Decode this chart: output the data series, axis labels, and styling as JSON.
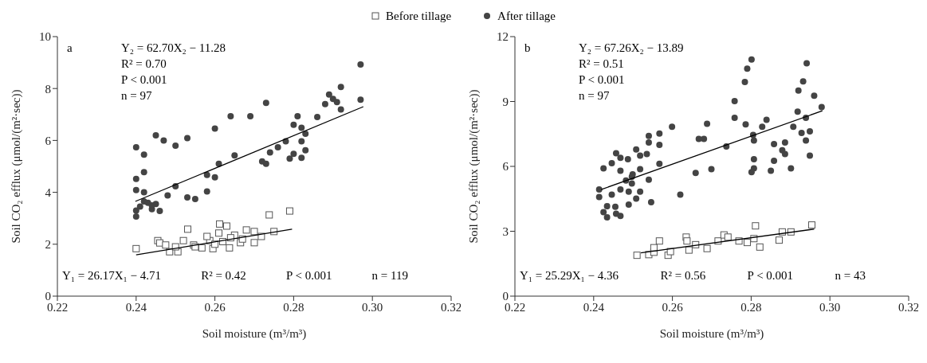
{
  "chart_data": [
    {
      "type": "scatter",
      "xlabel": "Soil moisture (m³/m³)",
      "ylabel": "Soil CO₂ efflux (μmol/(m²·sec))",
      "xlim": [
        0.22,
        0.32
      ],
      "xticks": [
        0.22,
        0.24,
        0.26,
        0.28,
        {
          "value": 0.3,
          "label": "0.30"
        },
        0.32
      ],
      "ylim": [
        0,
        10
      ],
      "yticks": [
        0,
        2,
        4,
        6,
        8,
        10
      ],
      "legend": "top",
      "annotations": [
        "a",
        "Y₂ = 62.70X₂ − 11.28",
        "R² = 0.70",
        "P < 0.001",
        "n = 97",
        "Y₁ = 26.17X₁ − 4.71",
        "R² = 0.42",
        "P < 0.001",
        "n = 119"
      ],
      "series": [
        {
          "name": "Before tillage",
          "marker": "square",
          "color": "#555555",
          "x": [
            0.24,
            0.2455,
            0.246,
            0.2531,
            0.252,
            0.2485,
            0.2506,
            0.2612,
            0.263,
            0.261,
            0.265,
            0.268,
            0.27,
            0.2718,
            0.275,
            0.2738,
            0.279,
            0.2665,
            0.27,
            0.2567,
            0.2595,
            0.2546,
            0.2637,
            0.2587,
            0.2475,
            0.258,
            0.262,
            0.264,
            0.267,
            0.255,
            0.25,
            0.26
          ],
          "values": [
            1.83,
            2.14,
            2.05,
            2.58,
            2.14,
            1.71,
            1.71,
            2.78,
            2.7,
            2.43,
            2.35,
            2.55,
            2.49,
            2.3,
            2.49,
            3.13,
            3.28,
            2.06,
            2.06,
            1.86,
            1.83,
            1.97,
            1.86,
            2.14,
            1.97,
            2.3,
            2.1,
            2.25,
            2.2,
            1.9,
            1.9,
            2.0
          ]
        },
        {
          "name": "After tillage",
          "marker": "circle",
          "color": "#444444",
          "x": [
            0.297,
            0.297,
            0.292,
            0.289,
            0.291,
            0.292,
            0.273,
            0.264,
            0.269,
            0.26,
            0.245,
            0.247,
            0.25,
            0.253,
            0.24,
            0.242,
            0.281,
            0.286,
            0.28,
            0.282,
            0.283,
            0.278,
            0.282,
            0.276,
            0.274,
            0.283,
            0.28,
            0.282,
            0.279,
            0.272,
            0.273,
            0.265,
            0.261,
            0.24,
            0.242,
            0.24,
            0.242,
            0.258,
            0.26,
            0.258,
            0.25,
            0.248,
            0.253,
            0.255,
            0.246,
            0.24,
            0.241,
            0.243,
            0.244,
            0.245,
            0.24,
            0.242,
            0.244,
            0.29,
            0.288
          ],
          "values": [
            8.93,
            7.57,
            8.06,
            7.77,
            7.48,
            7.19,
            7.45,
            6.93,
            6.93,
            6.46,
            6.2,
            6.0,
            5.8,
            6.09,
            5.74,
            5.45,
            6.93,
            6.9,
            6.6,
            6.49,
            6.26,
            5.97,
            5.97,
            5.74,
            5.54,
            5.62,
            5.48,
            5.33,
            5.3,
            5.19,
            5.1,
            5.42,
            5.1,
            4.52,
            4.78,
            4.09,
            4.0,
            4.67,
            4.58,
            4.03,
            4.23,
            3.88,
            3.8,
            3.74,
            3.28,
            3.07,
            3.45,
            3.6,
            3.35,
            3.55,
            3.3,
            3.65,
            3.5,
            7.6,
            7.4
          ]
        },
        {
          "type": "line",
          "marker": "none",
          "color": "#000000",
          "x": [
            0.24,
            0.2796
          ],
          "values": [
            1.59,
            2.58
          ]
        },
        {
          "type": "line",
          "marker": "none",
          "color": "#000000",
          "x": [
            0.2398,
            0.2977
          ],
          "values": [
            3.65,
            7.3
          ]
        }
      ]
    },
    {
      "type": "scatter",
      "xlabel": "Soil moisture (m³/m³)",
      "ylabel": "Soil CO₂ efflux (μmol/(m²·sec))",
      "xlim": [
        0.22,
        0.32
      ],
      "xticks": [
        0.22,
        0.24,
        0.26,
        0.28,
        {
          "value": 0.3,
          "label": "0.30"
        },
        0.32
      ],
      "ylim": [
        0,
        12
      ],
      "yticks": [
        0,
        3,
        6,
        9,
        12
      ],
      "annotations": [
        "b",
        "Y₂ = 67.26X₂ − 13.89",
        "R² = 0.51",
        "P < 0.001",
        "n = 97",
        "Y₁ = 25.29X₁ − 4.36",
        "R² = 0.56",
        "P < 0.001",
        "n = 43"
      ],
      "series": [
        {
          "marker": "square",
          "color": "#555555",
          "x": [
            0.251,
            0.254,
            0.2553,
            0.2567,
            0.2553,
            0.2589,
            0.2595,
            0.2635,
            0.2637,
            0.2642,
            0.2659,
            0.2688,
            0.2716,
            0.2731,
            0.2741,
            0.2769,
            0.279,
            0.2811,
            0.2807,
            0.2822,
            0.2871,
            0.2879,
            0.2901,
            0.2954
          ],
          "values": [
            1.89,
            1.92,
            2.03,
            2.55,
            2.24,
            1.89,
            2.06,
            2.73,
            2.55,
            2.13,
            2.38,
            2.2,
            2.55,
            2.83,
            2.73,
            2.55,
            2.48,
            3.25,
            2.66,
            2.27,
            2.59,
            2.97,
            2.97,
            3.29
          ]
        },
        {
          "marker": "circle",
          "color": "#444444",
          "x": [
            0.2801,
            0.279,
            0.2784,
            0.2941,
            0.2932,
            0.292,
            0.296,
            0.2979,
            0.2758,
            0.2758,
            0.2918,
            0.2939,
            0.2907,
            0.2928,
            0.2949,
            0.2939,
            0.2949,
            0.2839,
            0.2828,
            0.2786,
            0.2805,
            0.2807,
            0.2858,
            0.2886,
            0.2879,
            0.2886,
            0.2858,
            0.2807,
            0.2807,
            0.2801,
            0.285,
            0.2901,
            0.2737,
            0.2688,
            0.2667,
            0.268,
            0.2659,
            0.2699,
            0.2599,
            0.2567,
            0.2567,
            0.254,
            0.254,
            0.2567,
            0.2508,
            0.2457,
            0.2468,
            0.2487,
            0.2518,
            0.2535,
            0.2425,
            0.2446,
            0.2518,
            0.2468,
            0.2499,
            0.2482,
            0.2497,
            0.254,
            0.262,
            0.2546,
            0.2414,
            0.2414,
            0.2446,
            0.2468,
            0.2489,
            0.2518,
            0.2508,
            0.2489,
            0.2434,
            0.2455,
            0.2425,
            0.2434,
            0.2457,
            0.2468,
            0.2497
          ],
          "values": [
            10.94,
            10.52,
            9.9,
            10.77,
            9.93,
            9.51,
            9.27,
            8.74,
            9.02,
            8.25,
            8.53,
            8.25,
            7.83,
            7.55,
            7.62,
            7.2,
            6.5,
            8.15,
            7.83,
            7.94,
            7.45,
            7.2,
            7.03,
            7.1,
            6.75,
            6.57,
            6.26,
            6.33,
            5.91,
            5.73,
            5.8,
            5.91,
            6.92,
            7.97,
            7.27,
            7.27,
            5.7,
            5.87,
            7.83,
            7.52,
            6.99,
            7.41,
            7.1,
            6.12,
            6.78,
            6.61,
            6.4,
            6.33,
            6.5,
            6.57,
            5.91,
            6.15,
            5.87,
            5.8,
            5.63,
            5.35,
            5.21,
            5.38,
            4.69,
            4.34,
            4.93,
            4.58,
            4.69,
            4.93,
            4.83,
            4.83,
            4.51,
            4.23,
            4.16,
            4.13,
            3.88,
            3.64,
            3.81,
            3.71,
            5.52
          ]
        },
        {
          "type": "line",
          "marker": "none",
          "color": "#000000",
          "x": [
            0.252,
            0.296
          ],
          "values": [
            2.0,
            3.1
          ]
        },
        {
          "type": "line",
          "marker": "none",
          "color": "#000000",
          "x": [
            0.2419,
            0.2981
          ],
          "values": [
            4.93,
            8.57
          ]
        }
      ]
    }
  ]
}
